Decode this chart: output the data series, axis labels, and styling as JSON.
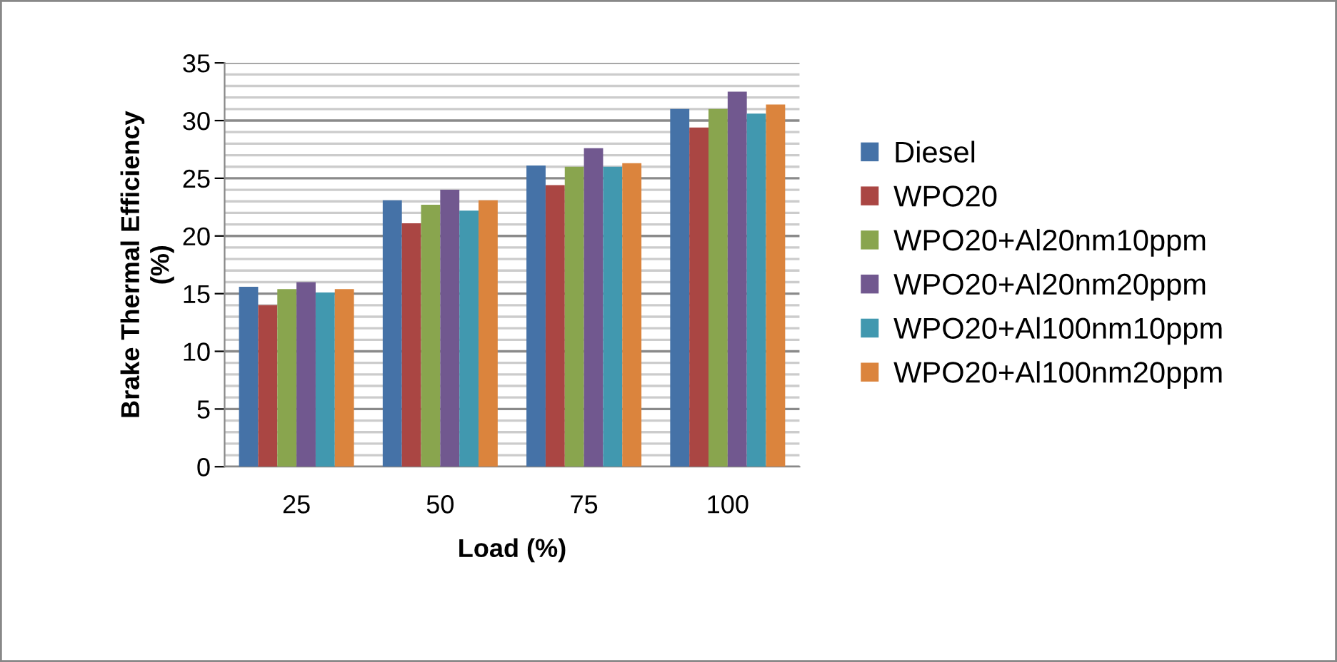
{
  "chart_data": {
    "type": "bar",
    "xlabel": "Load (%)",
    "ylabel": "Brake Thermal Efficiency\n(%)",
    "categories": [
      "25",
      "50",
      "75",
      "100"
    ],
    "series": [
      {
        "name": "Diesel",
        "color": "#4572a7",
        "values": [
          15.6,
          23.1,
          26.1,
          31.0
        ]
      },
      {
        "name": "WPO20",
        "color": "#aa4643",
        "values": [
          14.0,
          21.1,
          24.4,
          29.4
        ]
      },
      {
        "name": "WPO20+Al20nm10ppm",
        "color": "#89a54e",
        "values": [
          15.4,
          22.7,
          26.0,
          31.0
        ]
      },
      {
        "name": "WPO20+Al20nm20ppm",
        "color": "#71588f",
        "values": [
          16.0,
          24.0,
          27.6,
          32.5
        ]
      },
      {
        "name": "WPO20+Al100nm10ppm",
        "color": "#4198af",
        "values": [
          15.1,
          22.2,
          26.0,
          30.6
        ]
      },
      {
        "name": "WPO20+Al100nm20ppm",
        "color": "#db843d",
        "values": [
          15.4,
          23.1,
          26.3,
          31.4
        ]
      }
    ],
    "ylim": [
      0,
      35
    ],
    "yticks": [
      0,
      {
        "value": 1,
        "label": null
      },
      {
        "value": 2,
        "label": null
      },
      {
        "value": 3,
        "label": null
      },
      {
        "value": 4,
        "label": null
      },
      5,
      {
        "value": 6,
        "label": null
      },
      {
        "value": 7,
        "label": null
      },
      {
        "value": 8,
        "label": null
      },
      {
        "value": 9,
        "label": null
      },
      10,
      {
        "value": 11,
        "label": null
      },
      {
        "value": 12,
        "label": null
      },
      {
        "value": 13,
        "label": null
      },
      {
        "value": 14,
        "label": null
      },
      15,
      {
        "value": 16,
        "label": null
      },
      {
        "value": 17,
        "label": null
      },
      {
        "value": 18,
        "label": null
      },
      {
        "value": 19,
        "label": null
      },
      20,
      {
        "value": 21,
        "label": null
      },
      {
        "value": 22,
        "label": null
      },
      {
        "value": 23,
        "label": null
      },
      {
        "value": 24,
        "label": null
      },
      25,
      {
        "value": 26,
        "label": null
      },
      {
        "value": 27,
        "label": null
      },
      {
        "value": 28,
        "label": null
      },
      {
        "value": 29,
        "label": null
      },
      30,
      {
        "value": 31,
        "label": null
      },
      {
        "value": 32,
        "label": null
      },
      {
        "value": 33,
        "label": null
      },
      {
        "value": 34,
        "label": null
      },
      35
    ],
    "grid": "y",
    "legend": "right"
  }
}
